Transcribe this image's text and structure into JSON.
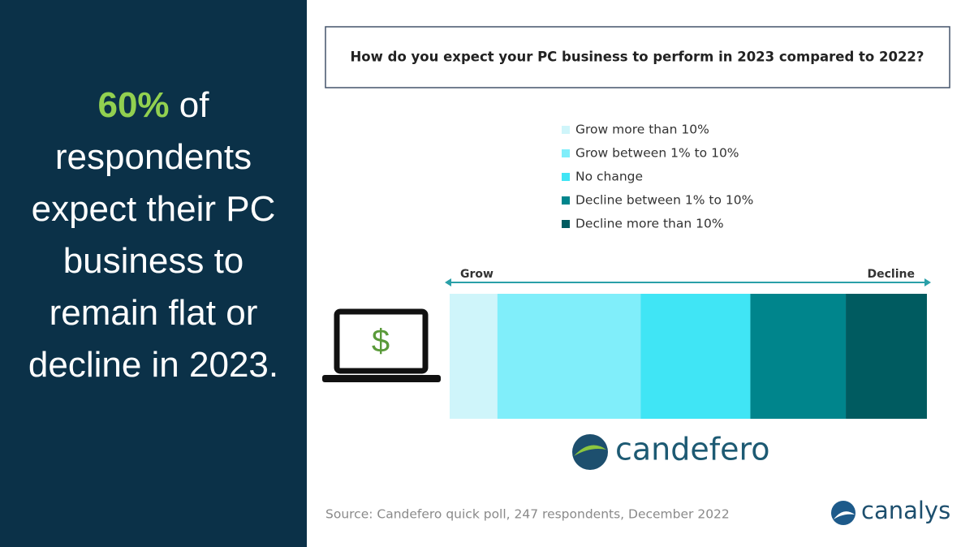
{
  "headline": {
    "highlight": "60%",
    "text": "of respondents expect their PC business to remain flat or decline in 2023."
  },
  "chart_data": {
    "type": "bar",
    "orientation": "horizontal",
    "stacked": true,
    "title": "How do you expect your PC business to perform in 2023 compared to 2022?",
    "categories": [
      null
    ],
    "series": [
      {
        "name": "Grow more than 10%",
        "color": "#cff5fa",
        "values": [
          10
        ]
      },
      {
        "name": "Grow between 1% to 10%",
        "color": "#80eefa",
        "values": [
          30
        ]
      },
      {
        "name": "No change",
        "color": "#40e5f5",
        "values": [
          23
        ]
      },
      {
        "name": "Decline between 1% to 10%",
        "color": "#00858c",
        "values": [
          20
        ]
      },
      {
        "name": "Decline more than 10%",
        "color": "#005b60",
        "values": [
          17
        ]
      }
    ],
    "annotations": {
      "left": "Grow",
      "right": "Decline"
    }
  },
  "logos": {
    "sponsor": "candefero",
    "brand": "canalys"
  },
  "source": "Source: Candefero quick poll, 247 respondents, December 2022"
}
